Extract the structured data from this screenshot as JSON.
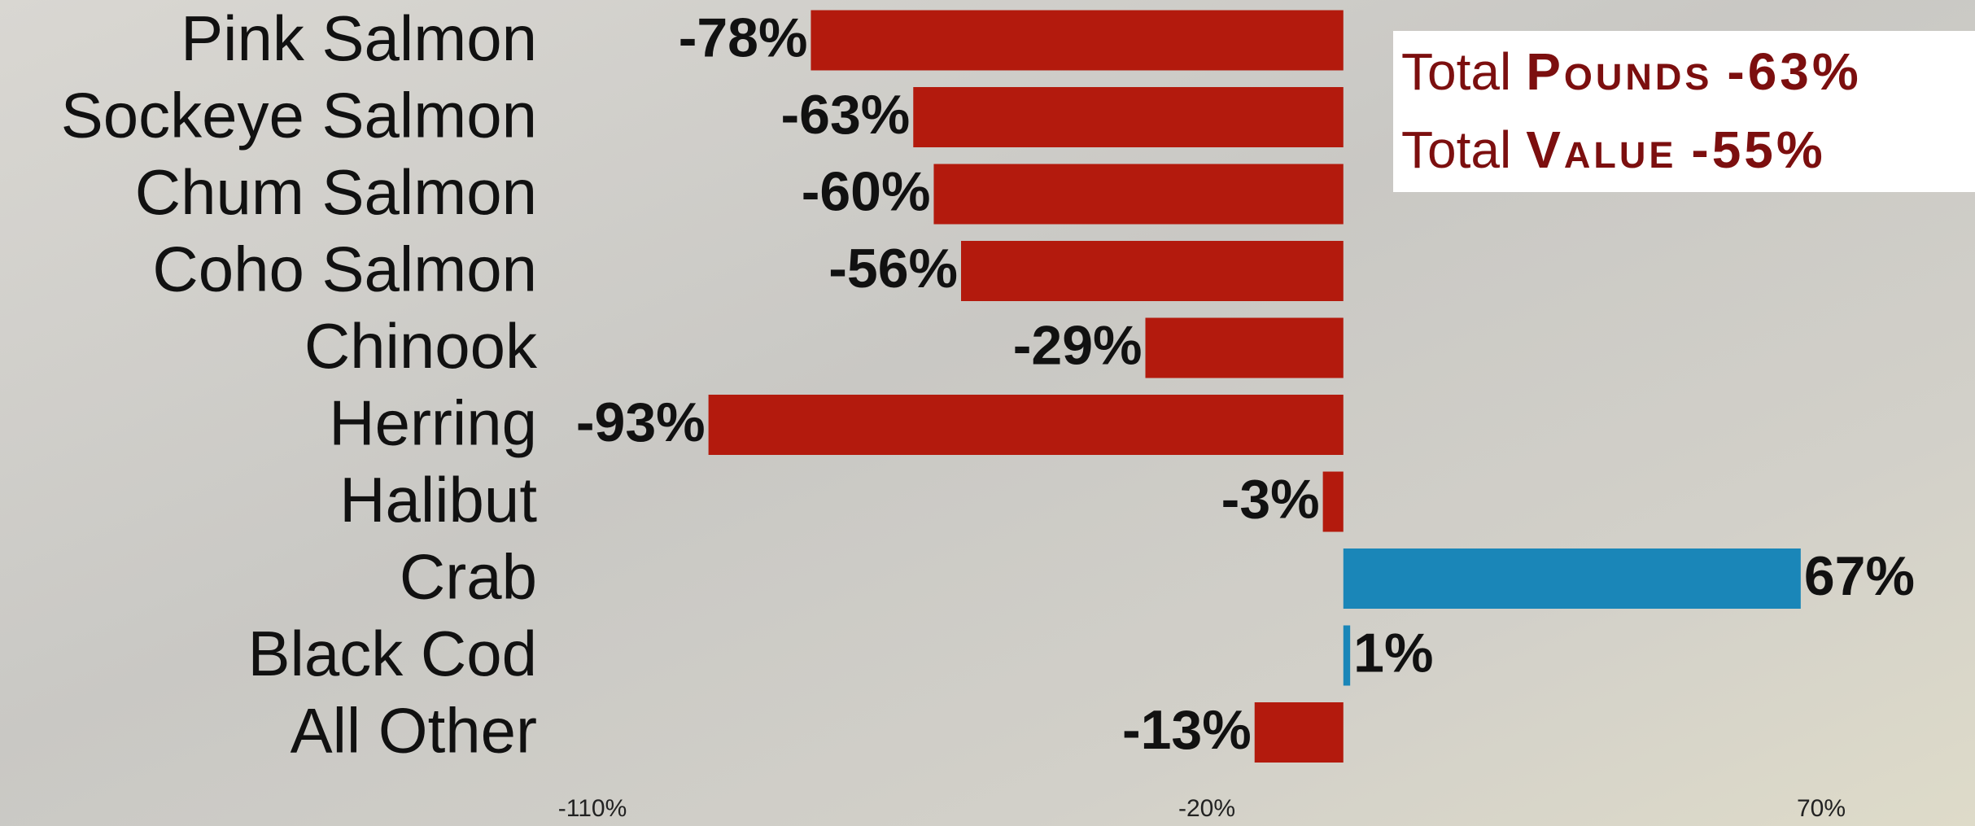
{
  "chart_data": {
    "type": "hbar",
    "categories": [
      "Pink Salmon",
      "Sockeye Salmon",
      "Chum Salmon",
      "Coho Salmon",
      "Chinook",
      "Herring",
      "Halibut",
      "Crab",
      "Black Cod",
      "All Other"
    ],
    "values": [
      -78,
      -63,
      -60,
      -56,
      -29,
      -93,
      -3,
      67,
      1,
      -13
    ],
    "value_labels": [
      "-78%",
      "-63%",
      "-60%",
      "-56%",
      "-29%",
      "-93%",
      "-3%",
      "67%",
      "1%",
      "-13%"
    ],
    "colors": [
      "#b31a0d",
      "#b31a0d",
      "#b31a0d",
      "#b31a0d",
      "#b31a0d",
      "#b31a0d",
      "#b31a0d",
      "#1a86b8",
      "#1a86b8",
      "#b31a0d"
    ],
    "xlim": [
      -110,
      70
    ],
    "xticks": [
      {
        "value": -110,
        "label": "-110%"
      },
      {
        "value": -20,
        "label": "-20%"
      },
      {
        "value": 70,
        "label": "70%"
      }
    ],
    "grid": false,
    "annotations": [
      {
        "prefix": "Total",
        "label": "Pounds",
        "value": "-63%"
      },
      {
        "prefix": "Total",
        "label": "Value",
        "value": "-55%"
      }
    ]
  }
}
